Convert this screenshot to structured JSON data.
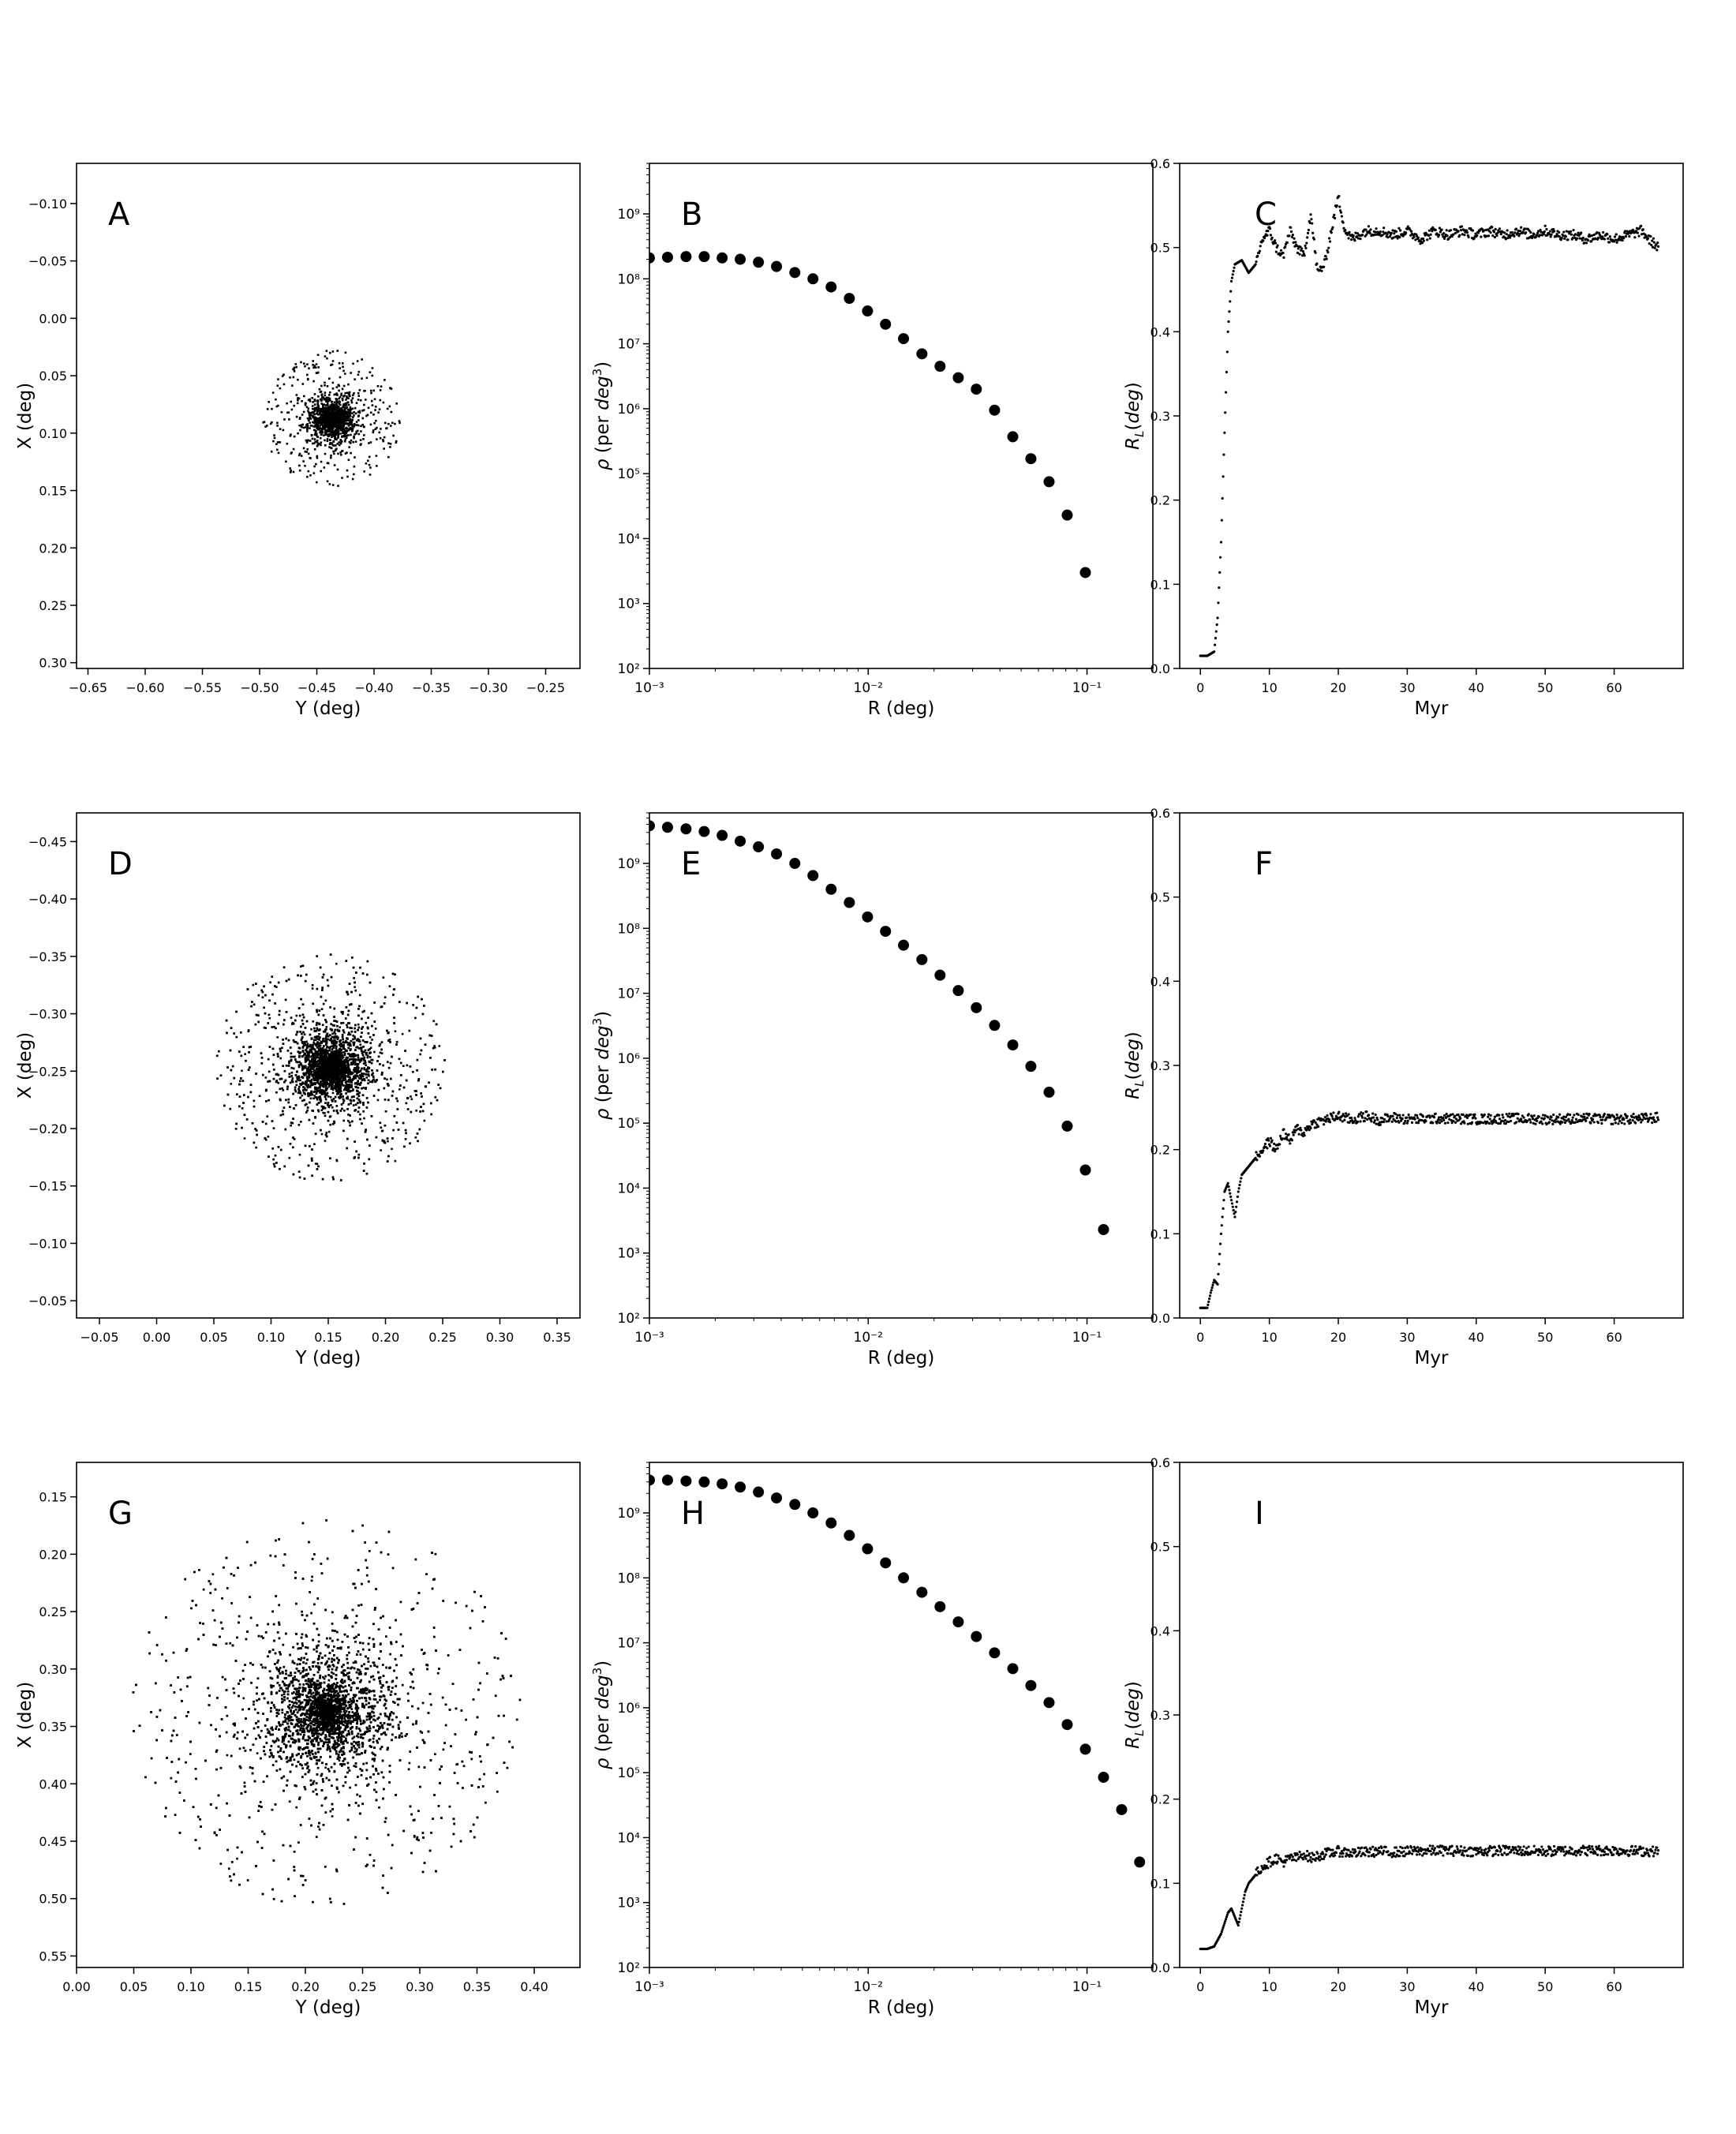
{
  "chart_data": [
    {
      "panel": "A",
      "type": "scatter",
      "xlabel": "Y (deg)",
      "ylabel": "X (deg)",
      "xlim": [
        -0.66,
        -0.22
      ],
      "ylim": [
        0.305,
        -0.135
      ],
      "y_inverted": true,
      "xticks": [
        -0.65,
        -0.6,
        -0.55,
        -0.5,
        -0.45,
        -0.4,
        -0.35,
        -0.3,
        -0.25
      ],
      "yticks": [
        -0.1,
        -0.05,
        0.0,
        0.05,
        0.1,
        0.15,
        0.2,
        0.25,
        0.3
      ],
      "cluster": {
        "center_x": -0.437,
        "center_y": 0.088,
        "core_sigma": 0.012,
        "halo_extent": 0.06
      }
    },
    {
      "panel": "B",
      "type": "scatter",
      "log_x": true,
      "log_y": true,
      "xlabel": "R (deg)",
      "ylabel": "ρ (per deg³)",
      "xlim": [
        0.001,
        0.2
      ],
      "ylim": [
        100,
        6000000000.0
      ],
      "xticks": [
        "10⁻³",
        "10⁻²",
        "10⁻¹"
      ],
      "yticks": [
        "10²",
        "10³",
        "10⁴",
        "10⁵",
        "10⁶",
        "10⁷",
        "10⁸",
        "10⁹"
      ],
      "x": [
        0.001,
        0.00121,
        0.00147,
        0.00178,
        0.00215,
        0.0026,
        0.00315,
        0.00381,
        0.00462,
        0.00559,
        0.00677,
        0.0082,
        0.00993,
        0.012,
        0.0145,
        0.0176,
        0.0213,
        0.0258,
        0.0312,
        0.0378,
        0.0458,
        0.0554,
        0.0671,
        0.0812,
        0.0983
      ],
      "y": [
        210000000.0,
        215000000.0,
        220000000.0,
        220000000.0,
        210000000.0,
        200000000.0,
        180000000.0,
        155000000.0,
        125000000.0,
        100000000.0,
        75000000.0,
        50000000.0,
        32000000.0,
        20000000.0,
        12000000.0,
        7000000.0,
        4500000.0,
        3000000.0,
        2000000.0,
        950000.0,
        370000.0,
        170000.0,
        75000.0,
        23000.0,
        3000.0
      ]
    },
    {
      "panel": "C",
      "type": "line",
      "xlabel": "Myr",
      "ylabel": "R_L(deg)",
      "xlim": [
        -3,
        70
      ],
      "ylim": [
        0,
        0.6
      ],
      "xticks": [
        0,
        10,
        20,
        30,
        40,
        50,
        60
      ],
      "yticks": [
        0.0,
        0.1,
        0.2,
        0.3,
        0.4,
        0.5,
        0.6
      ],
      "x": [
        0,
        1,
        2,
        2.5,
        3,
        3.5,
        4,
        4.5,
        5,
        6,
        7,
        8,
        9,
        10,
        11,
        12,
        13,
        14,
        15,
        16,
        17,
        18,
        19,
        20,
        21,
        22,
        24,
        26,
        28,
        30,
        32,
        34,
        36,
        38,
        40,
        42,
        44,
        46,
        48,
        50,
        52,
        54,
        56,
        58,
        60,
        62,
        64,
        65,
        66.5
      ],
      "y": [
        0.015,
        0.015,
        0.02,
        0.06,
        0.15,
        0.28,
        0.4,
        0.46,
        0.48,
        0.485,
        0.47,
        0.48,
        0.51,
        0.52,
        0.5,
        0.49,
        0.52,
        0.5,
        0.49,
        0.54,
        0.47,
        0.48,
        0.52,
        0.56,
        0.52,
        0.51,
        0.52,
        0.52,
        0.515,
        0.52,
        0.51,
        0.52,
        0.515,
        0.52,
        0.515,
        0.52,
        0.515,
        0.52,
        0.515,
        0.52,
        0.515,
        0.515,
        0.51,
        0.515,
        0.51,
        0.515,
        0.52,
        0.51,
        0.5
      ]
    },
    {
      "panel": "D",
      "type": "scatter",
      "xlabel": "Y (deg)",
      "ylabel": "X (deg)",
      "xlim": [
        -0.07,
        0.37
      ],
      "ylim": [
        -0.035,
        -0.475
      ],
      "y_inverted": true,
      "xticks": [
        -0.05,
        0.0,
        0.05,
        0.1,
        0.15,
        0.2,
        0.25,
        0.3,
        0.35
      ],
      "yticks": [
        -0.45,
        -0.4,
        -0.35,
        -0.3,
        -0.25,
        -0.2,
        -0.15,
        -0.1,
        -0.05
      ],
      "cluster": {
        "center_x": 0.152,
        "center_y": -0.253,
        "core_sigma": 0.02,
        "halo_extent": 0.1
      }
    },
    {
      "panel": "E",
      "type": "scatter",
      "log_x": true,
      "log_y": true,
      "xlabel": "R (deg)",
      "ylabel": "ρ (per deg³)",
      "xlim": [
        0.001,
        0.2
      ],
      "ylim": [
        100,
        6000000000.0
      ],
      "xticks": [
        "10⁻³",
        "10⁻²",
        "10⁻¹"
      ],
      "yticks": [
        "10²",
        "10³",
        "10⁴",
        "10⁵",
        "10⁶",
        "10⁷",
        "10⁸",
        "10⁹"
      ],
      "x": [
        0.001,
        0.00121,
        0.00147,
        0.00178,
        0.00215,
        0.0026,
        0.00315,
        0.00381,
        0.00462,
        0.00559,
        0.00677,
        0.0082,
        0.00993,
        0.012,
        0.0145,
        0.0176,
        0.0213,
        0.0258,
        0.0312,
        0.0378,
        0.0458,
        0.0554,
        0.0671,
        0.0812,
        0.0983,
        0.119
      ],
      "y": [
        3800000000.0,
        3600000000.0,
        3400000000.0,
        3100000000.0,
        2700000000.0,
        2200000000.0,
        1800000000.0,
        1400000000.0,
        1000000000.0,
        650000000.0,
        400000000.0,
        250000000.0,
        150000000.0,
        90000000.0,
        55000000.0,
        33000000.0,
        19000000.0,
        11000000.0,
        6000000.0,
        3200000.0,
        1600000.0,
        750000.0,
        300000.0,
        90000.0,
        19000.0,
        2300.0
      ]
    },
    {
      "panel": "F",
      "type": "line",
      "xlabel": "Myr",
      "ylabel": "R_L(deg)",
      "xlim": [
        -3,
        70
      ],
      "ylim": [
        0,
        0.6
      ],
      "xticks": [
        0,
        10,
        20,
        30,
        40,
        50,
        60
      ],
      "yticks": [
        0.0,
        0.1,
        0.2,
        0.3,
        0.4,
        0.5,
        0.6
      ],
      "x": [
        0,
        1,
        1.5,
        2,
        2.5,
        3,
        3.5,
        4,
        4.5,
        5,
        5.5,
        6,
        7,
        8,
        9,
        10,
        11,
        12,
        13,
        14,
        15,
        16,
        18,
        20,
        22,
        24,
        26,
        28,
        30,
        35,
        40,
        45,
        50,
        55,
        60,
        65,
        66.5
      ],
      "y": [
        0.012,
        0.012,
        0.03,
        0.045,
        0.04,
        0.1,
        0.15,
        0.16,
        0.14,
        0.12,
        0.15,
        0.17,
        0.18,
        0.19,
        0.2,
        0.21,
        0.2,
        0.22,
        0.21,
        0.225,
        0.22,
        0.23,
        0.235,
        0.24,
        0.235,
        0.24,
        0.235,
        0.238,
        0.236,
        0.237,
        0.236,
        0.237,
        0.236,
        0.237,
        0.236,
        0.237,
        0.238
      ]
    },
    {
      "panel": "G",
      "type": "scatter",
      "xlabel": "Y (deg)",
      "ylabel": "X (deg)",
      "xlim": [
        0.0,
        0.44
      ],
      "ylim": [
        0.56,
        0.12
      ],
      "y_inverted": true,
      "xticks": [
        0.0,
        0.05,
        0.1,
        0.15,
        0.2,
        0.25,
        0.3,
        0.35,
        0.4
      ],
      "yticks": [
        0.15,
        0.2,
        0.25,
        0.3,
        0.35,
        0.4,
        0.45,
        0.5,
        0.55
      ],
      "cluster": {
        "center_x": 0.218,
        "center_y": 0.338,
        "core_sigma": 0.035,
        "halo_extent": 0.17
      }
    },
    {
      "panel": "H",
      "type": "scatter",
      "log_x": true,
      "log_y": true,
      "xlabel": "R (deg)",
      "ylabel": "ρ (per deg³)",
      "xlim": [
        0.001,
        0.2
      ],
      "ylim": [
        100,
        6000000000.0
      ],
      "xticks": [
        "10⁻³",
        "10⁻²",
        "10⁻¹"
      ],
      "yticks": [
        "10²",
        "10³",
        "10⁴",
        "10⁵",
        "10⁶",
        "10⁷",
        "10⁸",
        "10⁹"
      ],
      "x": [
        0.001,
        0.00121,
        0.00147,
        0.00178,
        0.00215,
        0.0026,
        0.00315,
        0.00381,
        0.00462,
        0.00559,
        0.00677,
        0.0082,
        0.00993,
        0.012,
        0.0145,
        0.0176,
        0.0213,
        0.0258,
        0.0312,
        0.0378,
        0.0458,
        0.0554,
        0.0671,
        0.0812,
        0.0983,
        0.119,
        0.144,
        0.174
      ],
      "y": [
        3200000000.0,
        3200000000.0,
        3100000000.0,
        3000000000.0,
        2800000000.0,
        2500000000.0,
        2100000000.0,
        1700000000.0,
        1350000000.0,
        1000000000.0,
        700000000.0,
        450000000.0,
        280000000.0,
        170000000.0,
        100000000.0,
        60000000.0,
        36000000.0,
        21000000.0,
        12500000.0,
        7000000.0,
        4000000.0,
        2200000.0,
        1200000.0,
        550000.0,
        230000.0,
        85000.0,
        27000.0,
        4200.0
      ]
    },
    {
      "panel": "I",
      "type": "line",
      "xlabel": "Myr",
      "ylabel": "R_L(deg)",
      "xlim": [
        -3,
        70
      ],
      "ylim": [
        0,
        0.6
      ],
      "xticks": [
        0,
        10,
        20,
        30,
        40,
        50,
        60
      ],
      "yticks": [
        0.0,
        0.1,
        0.2,
        0.3,
        0.4,
        0.5,
        0.6
      ],
      "x": [
        0,
        1,
        2,
        3,
        4,
        4.5,
        5,
        5.5,
        6,
        6.5,
        7,
        8,
        9,
        10,
        11,
        12,
        13,
        14,
        15,
        16,
        18,
        20,
        22,
        24,
        26,
        28,
        30,
        35,
        40,
        45,
        50,
        55,
        60,
        65,
        66.5
      ],
      "y": [
        0.022,
        0.022,
        0.025,
        0.04,
        0.065,
        0.07,
        0.06,
        0.05,
        0.07,
        0.09,
        0.1,
        0.11,
        0.12,
        0.125,
        0.13,
        0.125,
        0.13,
        0.13,
        0.135,
        0.13,
        0.135,
        0.138,
        0.136,
        0.137,
        0.138,
        0.137,
        0.138,
        0.139,
        0.138,
        0.139,
        0.138,
        0.139,
        0.139,
        0.138,
        0.138
      ]
    }
  ]
}
